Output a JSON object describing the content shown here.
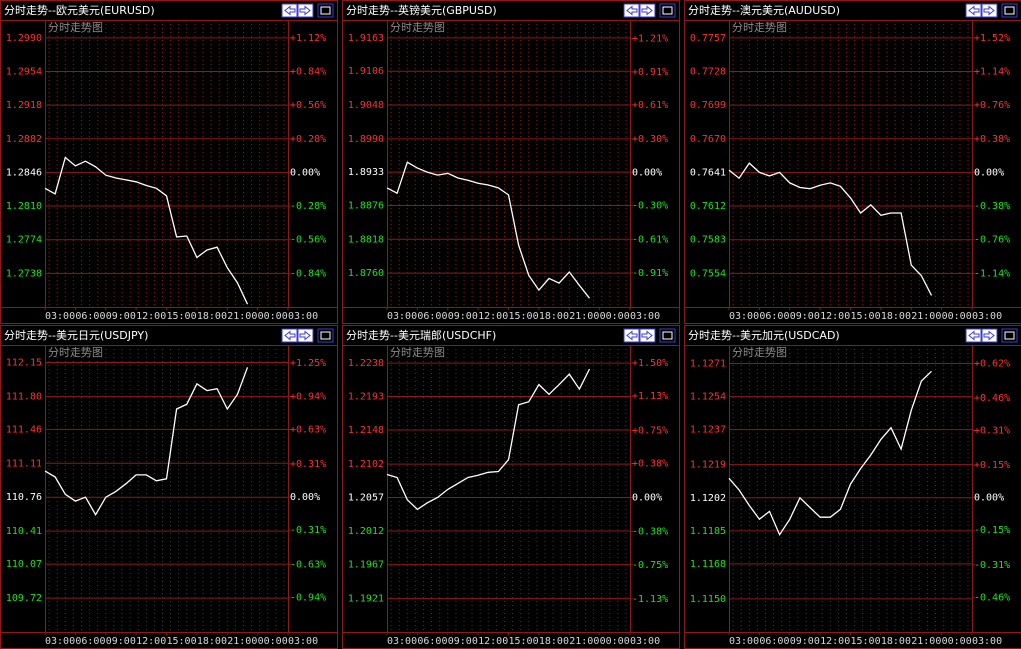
{
  "chart_data": [
    {
      "type": "line",
      "title": "分时走势--欧元美元(EURUSD)",
      "subtitle": "分时走势图",
      "color": "#ffffff",
      "x": [
        0,
        1,
        2,
        3,
        4,
        5,
        6,
        7,
        8,
        9,
        10,
        11,
        12,
        13,
        14,
        15,
        16,
        17,
        18,
        19,
        20
      ],
      "values": [
        1.2829,
        1.2823,
        1.2862,
        1.2853,
        1.2858,
        1.2852,
        1.2843,
        1.284,
        1.2838,
        1.2836,
        1.2832,
        1.2829,
        1.2821,
        1.2777,
        1.2778,
        1.2755,
        1.2763,
        1.2766,
        1.2744,
        1.2728,
        1.2705
      ],
      "xlim": [
        0,
        24
      ],
      "xticks": [
        {
          "value": 0,
          "label": "03:00"
        },
        {
          "value": 3,
          "label": "06:00"
        },
        {
          "value": 6,
          "label": "09:00"
        },
        {
          "value": 9,
          "label": "12:00"
        },
        {
          "value": 12,
          "label": "15:00"
        },
        {
          "value": 15,
          "label": "18:00"
        },
        {
          "value": 18,
          "label": "21:00"
        },
        {
          "value": 21,
          "label": "00:00"
        },
        {
          "value": 24,
          "label": "03:00"
        }
      ],
      "ylim": [
        1.2702,
        1.3008
      ],
      "yticks": [
        {
          "value": 1.299,
          "label": "1.2990"
        },
        1.2954,
        1.2918,
        1.2882,
        1.2846,
        {
          "value": 1.281,
          "label": "1.2810"
        },
        1.2774,
        1.2738
      ],
      "y2lim": [
        -1.12,
        1.26
      ],
      "y2ticks": [
        {
          "value": 1.12,
          "label": "+1.12%"
        },
        {
          "value": 0.84,
          "label": "+0.84%"
        },
        {
          "value": 0.56,
          "label": "+0.56%"
        },
        {
          "value": 0.28,
          "label": "+0.28%"
        },
        {
          "value": 0,
          "label": "0.00%"
        },
        {
          "value": -0.28,
          "label": "-0.28%"
        },
        {
          "value": -0.56,
          "label": "-0.56%"
        },
        {
          "value": -0.84,
          "label": "-0.84%"
        }
      ]
    },
    {
      "type": "line",
      "title": "分时走势--英镑美元(GBPUSD)",
      "subtitle": "分时走势图",
      "color": "#ffffff",
      "x": [
        0,
        1,
        2,
        3,
        4,
        5,
        6,
        7,
        8,
        9,
        10,
        11,
        12,
        13,
        14,
        15,
        16,
        17,
        18,
        19,
        20
      ],
      "values": [
        1.8906,
        1.8897,
        1.895,
        1.894,
        1.8933,
        1.8928,
        1.8931,
        1.8923,
        1.8919,
        1.8914,
        1.8911,
        1.8906,
        1.8894,
        1.8808,
        1.8756,
        1.8731,
        1.8751,
        1.8743,
        1.8762,
        1.8739,
        1.8717
      ],
      "xlim": [
        0,
        24
      ],
      "xticks": [
        {
          "value": 0,
          "label": "03:00"
        },
        {
          "value": 3,
          "label": "06:00"
        },
        {
          "value": 6,
          "label": "09:00"
        },
        {
          "value": 9,
          "label": "12:00"
        },
        {
          "value": 12,
          "label": "15:00"
        },
        {
          "value": 15,
          "label": "18:00"
        },
        {
          "value": 18,
          "label": "21:00"
        },
        {
          "value": 21,
          "label": "00:00"
        },
        {
          "value": 24,
          "label": "03:00"
        }
      ],
      "ylim": [
        1.8702,
        1.9192
      ],
      "yticks": [
        1.9163,
        1.9106,
        1.9048,
        {
          "value": 1.899,
          "label": "1.8990"
        },
        1.8933,
        1.8876,
        1.8818,
        {
          "value": 1.876,
          "label": "1.8760"
        }
      ],
      "y2lim": [
        -1.22,
        1.37
      ],
      "y2ticks": [
        {
          "value": 1.21,
          "label": "+1.21%"
        },
        {
          "value": 0.91,
          "label": "+0.91%"
        },
        {
          "value": 0.61,
          "label": "+0.61%"
        },
        {
          "value": 0.3,
          "label": "+0.30%"
        },
        {
          "value": 0,
          "label": "0.00%"
        },
        {
          "value": -0.3,
          "label": "-0.30%"
        },
        {
          "value": -0.61,
          "label": "-0.61%"
        },
        {
          "value": -0.91,
          "label": "-0.91%"
        }
      ]
    },
    {
      "type": "line",
      "title": "分时走势--澳元美元(AUDUSD)",
      "subtitle": "分时走势图",
      "color": "#ffffff",
      "x": [
        0,
        1,
        2,
        3,
        4,
        5,
        6,
        7,
        8,
        9,
        10,
        11,
        12,
        13,
        14,
        15,
        16,
        17,
        18,
        19,
        20
      ],
      "values": [
        0.7643,
        0.7636,
        0.7649,
        0.7641,
        0.7638,
        0.7641,
        0.7632,
        0.7628,
        0.7627,
        0.763,
        0.7632,
        0.7629,
        0.7619,
        0.7606,
        0.7613,
        0.7604,
        0.7606,
        0.7606,
        0.7561,
        0.7552,
        0.7535
      ],
      "xlim": [
        0,
        24
      ],
      "xticks": [
        {
          "value": 0,
          "label": "03:00"
        },
        {
          "value": 3,
          "label": "06:00"
        },
        {
          "value": 6,
          "label": "09:00"
        },
        {
          "value": 9,
          "label": "12:00"
        },
        {
          "value": 12,
          "label": "15:00"
        },
        {
          "value": 15,
          "label": "18:00"
        },
        {
          "value": 18,
          "label": "21:00"
        },
        {
          "value": 21,
          "label": "00:00"
        },
        {
          "value": 24,
          "label": "03:00"
        }
      ],
      "ylim": [
        0.7525,
        0.77715
      ],
      "yticks": [
        0.7757,
        0.7728,
        0.7699,
        {
          "value": 0.767,
          "label": "0.7670"
        },
        0.7641,
        0.7612,
        0.7583,
        0.7554
      ],
      "y2lim": [
        -1.52,
        1.71
      ],
      "y2ticks": [
        {
          "value": 1.52,
          "label": "+1.52%"
        },
        {
          "value": 1.14,
          "label": "+1.14%"
        },
        {
          "value": 0.76,
          "label": "+0.76%"
        },
        {
          "value": 0.38,
          "label": "+0.38%"
        },
        {
          "value": 0,
          "label": "0.00%"
        },
        {
          "value": -0.38,
          "label": "-0.38%"
        },
        {
          "value": -0.76,
          "label": "-0.76%"
        },
        {
          "value": -1.14,
          "label": "-1.14%"
        }
      ]
    },
    {
      "type": "line",
      "title": "分时走势--美元日元(USDJPY)",
      "subtitle": "分时走势图",
      "color": "#ffffff",
      "x": [
        0,
        1,
        2,
        3,
        4,
        5,
        6,
        7,
        8,
        9,
        10,
        11,
        12,
        13,
        14,
        15,
        16,
        17,
        18,
        19,
        20
      ],
      "values": [
        111.03,
        110.97,
        110.79,
        110.72,
        110.76,
        110.58,
        110.76,
        110.82,
        110.9,
        110.99,
        110.99,
        110.93,
        110.95,
        111.67,
        111.72,
        111.93,
        111.86,
        111.88,
        111.67,
        111.82,
        112.1
      ],
      "xlim": [
        0,
        24
      ],
      "xticks": [
        {
          "value": 0,
          "label": "03:00"
        },
        {
          "value": 3,
          "label": "06:00"
        },
        {
          "value": 6,
          "label": "09:00"
        },
        {
          "value": 9,
          "label": "12:00"
        },
        {
          "value": 12,
          "label": "15:00"
        },
        {
          "value": 15,
          "label": "18:00"
        },
        {
          "value": 18,
          "label": "21:00"
        },
        {
          "value": 21,
          "label": "00:00"
        },
        {
          "value": 24,
          "label": "03:00"
        }
      ],
      "ylim": [
        109.37,
        112.32
      ],
      "yticks": [
        112.15,
        {
          "value": 111.8,
          "label": "111.80"
        },
        111.46,
        111.11,
        110.76,
        110.41,
        110.07,
        109.72
      ],
      "y2lim": [
        -1.26,
        1.41
      ],
      "y2ticks": [
        {
          "value": 1.25,
          "label": "+1.25%"
        },
        {
          "value": 0.94,
          "label": "+0.94%"
        },
        {
          "value": 0.63,
          "label": "+0.63%"
        },
        {
          "value": 0.31,
          "label": "+0.31%"
        },
        {
          "value": 0,
          "label": "0.00%"
        },
        {
          "value": -0.31,
          "label": "-0.31%"
        },
        {
          "value": -0.63,
          "label": "-0.63%"
        },
        {
          "value": -0.94,
          "label": "-0.94%"
        }
      ]
    },
    {
      "type": "line",
      "title": "分时走势--美元瑞郎(USDCHF)",
      "subtitle": "分时走势图",
      "color": "#ffffff",
      "x": [
        0,
        1,
        2,
        3,
        4,
        5,
        6,
        7,
        8,
        9,
        10,
        11,
        12,
        13,
        14,
        15,
        16,
        17,
        18,
        19,
        20
      ],
      "values": [
        1.2088,
        1.2084,
        1.2054,
        1.2041,
        1.205,
        1.2057,
        1.2068,
        1.2076,
        1.2084,
        1.2087,
        1.2091,
        1.2092,
        1.2108,
        1.2182,
        1.2186,
        1.2209,
        1.2196,
        1.2209,
        1.2223,
        1.2203,
        1.223
      ],
      "xlim": [
        0,
        24
      ],
      "xticks": [
        {
          "value": 0,
          "label": "03:00"
        },
        {
          "value": 3,
          "label": "06:00"
        },
        {
          "value": 6,
          "label": "09:00"
        },
        {
          "value": 9,
          "label": "12:00"
        },
        {
          "value": 12,
          "label": "15:00"
        },
        {
          "value": 15,
          "label": "18:00"
        },
        {
          "value": 18,
          "label": "21:00"
        },
        {
          "value": 21,
          "label": "00:00"
        },
        {
          "value": 24,
          "label": "03:00"
        }
      ],
      "ylim": [
        1.1876,
        1.2261
      ],
      "yticks": [
        1.2238,
        1.2193,
        1.2148,
        1.2102,
        1.2057,
        1.2012,
        1.1967,
        1.1921
      ],
      "y2lim": [
        -1.5,
        1.69
      ],
      "y2ticks": [
        {
          "value": 1.5,
          "label": "+1.50%"
        },
        {
          "value": 1.13,
          "label": "+1.13%"
        },
        {
          "value": 0.75,
          "label": "+0.75%"
        },
        {
          "value": 0.38,
          "label": "+0.38%"
        },
        {
          "value": 0,
          "label": "0.00%"
        },
        {
          "value": -0.38,
          "label": "-0.38%"
        },
        {
          "value": -0.75,
          "label": "-0.75%"
        },
        {
          "value": -1.13,
          "label": "-1.13%"
        }
      ]
    },
    {
      "type": "line",
      "title": "分时走势--美元加元(USDCAD)",
      "subtitle": "分时走势图",
      "color": "#ffffff",
      "x": [
        0,
        1,
        2,
        3,
        4,
        5,
        6,
        7,
        8,
        9,
        10,
        11,
        12,
        13,
        14,
        15,
        16,
        17,
        18,
        19,
        20
      ],
      "values": [
        1.1212,
        1.1206,
        1.1198,
        1.1191,
        1.1195,
        1.1183,
        1.1191,
        1.1202,
        1.1197,
        1.1192,
        1.1192,
        1.1196,
        1.1209,
        1.1217,
        1.1224,
        1.1232,
        1.1238,
        1.1227,
        1.1247,
        1.1262,
        1.1267
      ],
      "xlim": [
        0,
        24
      ],
      "xticks": [
        {
          "value": 0,
          "label": "03:00"
        },
        {
          "value": 3,
          "label": "06:00"
        },
        {
          "value": 6,
          "label": "09:00"
        },
        {
          "value": 9,
          "label": "12:00"
        },
        {
          "value": 12,
          "label": "15:00"
        },
        {
          "value": 15,
          "label": "18:00"
        },
        {
          "value": 18,
          "label": "21:00"
        },
        {
          "value": 21,
          "label": "00:00"
        },
        {
          "value": 24,
          "label": "03:00"
        }
      ],
      "ylim": [
        1.1133,
        1.128
      ],
      "yticks": [
        1.1271,
        1.1254,
        1.1237,
        1.1219,
        1.1202,
        1.1185,
        1.1168,
        {
          "value": 1.115,
          "label": "1.1150"
        }
      ],
      "y2lim": [
        -0.62,
        0.7
      ],
      "y2ticks": [
        {
          "value": 0.62,
          "label": "+0.62%"
        },
        {
          "value": 0.46,
          "label": "+0.46%"
        },
        {
          "value": 0.31,
          "label": "+0.31%"
        },
        {
          "value": 0.15,
          "label": "+0.15%"
        },
        {
          "value": 0,
          "label": "0.00%"
        },
        {
          "value": -0.15,
          "label": "-0.15%"
        },
        {
          "value": -0.31,
          "label": "-0.31%"
        },
        {
          "value": -0.46,
          "label": "-0.46%"
        }
      ]
    }
  ]
}
